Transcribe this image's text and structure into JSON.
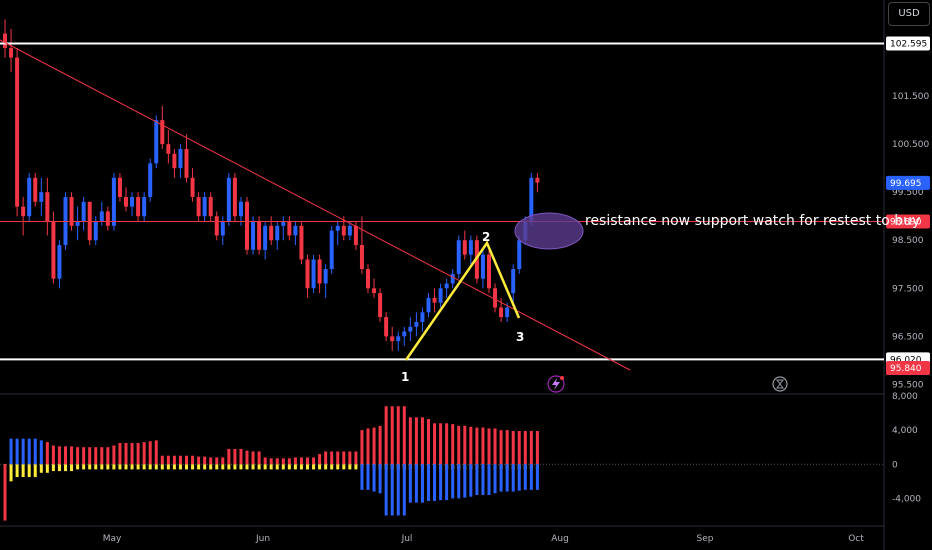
{
  "currency_button": "USD",
  "annotation_text": "resistance now support watch for restest to buy",
  "wave_labels": [
    "1",
    "2",
    "3"
  ],
  "colors": {
    "background": "#000000",
    "up_candle": "#2962ff",
    "down_candle": "#f23645",
    "level_line": "#ffffff",
    "resistance_line": "#f23645",
    "wave_line": "#ffeb3b",
    "ellipse_fill": "#5b3c8f",
    "tag_blue": "#2962ff",
    "tag_red": "#f23645"
  },
  "icons": [
    "lightning-icon",
    "hourglass-icon"
  ],
  "chart_data": [
    {
      "type": "candlestick",
      "title": "",
      "x_ticks": [
        "May",
        "Jun",
        "Jul",
        "Aug",
        "Sep",
        "Oct"
      ],
      "y_ticks": [
        "101.500",
        "100.500",
        "99.500",
        "98.500",
        "97.500",
        "96.500",
        "95.500"
      ],
      "ylim": [
        95.3,
        103.5
      ],
      "price_tags": [
        {
          "label": "102.595",
          "value": 102.595,
          "style": "white"
        },
        {
          "label": "99.695",
          "value": 99.695,
          "style": "blue"
        },
        {
          "label": "98.890",
          "value": 98.89,
          "style": "red"
        },
        {
          "label": "96.020",
          "value": 96.02,
          "style": "white"
        },
        {
          "label": "95.840",
          "value": 95.84,
          "style": "red"
        }
      ],
      "horizontal_levels": [
        102.595,
        96.02,
        98.89
      ],
      "candles": [
        [
          102.8,
          103.1,
          102.3,
          102.5
        ],
        [
          102.5,
          102.9,
          102.0,
          102.3
        ],
        [
          102.3,
          102.5,
          99.0,
          99.2
        ],
        [
          99.2,
          99.4,
          98.6,
          99.0
        ],
        [
          99.0,
          99.9,
          98.9,
          99.8
        ],
        [
          99.8,
          99.9,
          99.2,
          99.3
        ],
        [
          99.3,
          99.8,
          99.0,
          99.5
        ],
        [
          99.5,
          99.8,
          98.6,
          98.9
        ],
        [
          98.9,
          99.1,
          97.6,
          97.7
        ],
        [
          97.7,
          98.5,
          97.5,
          98.4
        ],
        [
          98.4,
          99.5,
          98.3,
          99.4
        ],
        [
          99.4,
          99.5,
          98.7,
          98.8
        ],
        [
          98.8,
          99.2,
          98.5,
          98.9
        ],
        [
          98.9,
          99.4,
          98.7,
          99.3
        ],
        [
          99.3,
          99.3,
          98.4,
          98.5
        ],
        [
          98.5,
          99.0,
          98.4,
          98.9
        ],
        [
          98.9,
          99.3,
          98.8,
          99.1
        ],
        [
          99.1,
          99.2,
          98.7,
          98.8
        ],
        [
          98.8,
          99.9,
          98.7,
          99.8
        ],
        [
          99.8,
          99.9,
          99.3,
          99.4
        ],
        [
          99.4,
          99.6,
          99.1,
          99.2
        ],
        [
          99.2,
          99.5,
          99.0,
          99.4
        ],
        [
          99.4,
          99.5,
          98.9,
          99.0
        ],
        [
          99.0,
          99.5,
          98.9,
          99.4
        ],
        [
          99.4,
          100.2,
          99.3,
          100.1
        ],
        [
          100.1,
          101.1,
          100.0,
          101.0
        ],
        [
          101.0,
          101.3,
          100.4,
          100.5
        ],
        [
          100.5,
          100.8,
          100.1,
          100.3
        ],
        [
          100.3,
          100.4,
          99.8,
          100.0
        ],
        [
          100.0,
          100.5,
          99.8,
          100.4
        ],
        [
          100.4,
          100.7,
          99.7,
          99.8
        ],
        [
          99.8,
          100.0,
          99.3,
          99.4
        ],
        [
          99.4,
          99.5,
          98.9,
          99.0
        ],
        [
          99.0,
          99.5,
          98.9,
          99.4
        ],
        [
          99.4,
          99.5,
          98.9,
          99.0
        ],
        [
          99.0,
          99.1,
          98.5,
          98.6
        ],
        [
          98.6,
          99.0,
          98.4,
          98.9
        ],
        [
          98.9,
          99.9,
          98.8,
          99.8
        ],
        [
          99.8,
          99.9,
          98.9,
          99.0
        ],
        [
          99.0,
          99.4,
          98.8,
          99.3
        ],
        [
          99.3,
          99.4,
          98.2,
          98.3
        ],
        [
          98.3,
          99.0,
          98.2,
          98.9
        ],
        [
          98.9,
          99.0,
          98.2,
          98.3
        ],
        [
          98.3,
          98.9,
          98.1,
          98.8
        ],
        [
          98.8,
          99.0,
          98.4,
          98.5
        ],
        [
          98.5,
          98.9,
          98.3,
          98.8
        ],
        [
          98.8,
          99.0,
          98.5,
          98.9
        ],
        [
          98.9,
          99.0,
          98.5,
          98.6
        ],
        [
          98.6,
          98.9,
          98.4,
          98.8
        ],
        [
          98.8,
          98.9,
          98.0,
          98.1
        ],
        [
          98.1,
          98.2,
          97.3,
          97.5
        ],
        [
          97.5,
          98.2,
          97.4,
          98.1
        ],
        [
          98.1,
          98.2,
          97.4,
          97.6
        ],
        [
          97.6,
          98.0,
          97.3,
          97.9
        ],
        [
          97.9,
          98.8,
          97.8,
          98.7
        ],
        [
          98.7,
          98.9,
          98.4,
          98.8
        ],
        [
          98.8,
          99.0,
          98.5,
          98.6
        ],
        [
          98.6,
          98.9,
          98.5,
          98.8
        ],
        [
          98.8,
          98.9,
          98.3,
          98.4
        ],
        [
          98.4,
          99.0,
          97.8,
          97.9
        ],
        [
          97.9,
          98.0,
          97.4,
          97.5
        ],
        [
          97.5,
          97.7,
          97.3,
          97.4
        ],
        [
          97.4,
          97.5,
          96.8,
          96.9
        ],
        [
          96.9,
          97.0,
          96.4,
          96.5
        ],
        [
          96.5,
          96.7,
          96.2,
          96.4
        ],
        [
          96.4,
          96.6,
          96.2,
          96.5
        ],
        [
          96.5,
          96.7,
          96.3,
          96.6
        ],
        [
          96.6,
          96.9,
          96.4,
          96.7
        ],
        [
          96.7,
          97.0,
          96.5,
          96.8
        ],
        [
          96.8,
          97.1,
          96.6,
          97.0
        ],
        [
          97.0,
          97.4,
          96.9,
          97.3
        ],
        [
          97.3,
          97.5,
          97.0,
          97.2
        ],
        [
          97.2,
          97.6,
          97.1,
          97.5
        ],
        [
          97.5,
          97.7,
          97.3,
          97.6
        ],
        [
          97.6,
          97.9,
          97.5,
          97.8
        ],
        [
          97.8,
          98.6,
          97.7,
          98.5
        ],
        [
          98.5,
          98.7,
          98.1,
          98.2
        ],
        [
          98.2,
          98.6,
          98.0,
          98.5
        ],
        [
          98.5,
          98.6,
          97.6,
          97.7
        ],
        [
          97.7,
          98.3,
          97.5,
          98.2
        ],
        [
          98.2,
          98.3,
          97.4,
          97.5
        ],
        [
          97.5,
          97.6,
          97.0,
          97.1
        ],
        [
          97.1,
          97.3,
          96.8,
          96.9
        ],
        [
          96.9,
          97.2,
          96.8,
          97.1
        ],
        [
          97.4,
          98.0,
          97.2,
          97.9
        ],
        [
          97.9,
          98.6,
          97.8,
          98.5
        ],
        [
          98.5,
          99.0,
          98.4,
          98.9
        ],
        [
          98.9,
          99.9,
          98.8,
          99.8
        ],
        [
          99.8,
          99.9,
          99.5,
          99.7
        ]
      ],
      "annotations": [
        "1",
        "2",
        "3"
      ]
    },
    {
      "type": "bar",
      "title": "",
      "y_ticks": [
        "8,000",
        "4,000",
        "0",
        "-4,000"
      ],
      "ylim": [
        -7000,
        8000
      ],
      "series": [
        {
          "values": [
            -3000,
            -2000,
            -1500,
            -1500,
            -1500,
            -1500,
            -1000,
            -1000,
            -800,
            -800,
            -800,
            -800,
            -600,
            -600,
            -600,
            -600,
            -600,
            -600,
            -600,
            -600,
            -600,
            -600,
            -600,
            -600,
            -600,
            -600,
            -600,
            -600,
            -600,
            -600,
            -600,
            -600,
            -600,
            -600,
            -600,
            -600,
            -600,
            -600,
            -600,
            -600,
            -600,
            -600,
            -600,
            -600,
            -600,
            -600,
            -600,
            -600,
            -600,
            -600,
            -600,
            -600,
            -600,
            -600,
            -600,
            -600,
            -600,
            -600,
            -600,
            -600,
            -600,
            -600,
            -600,
            -600,
            -600,
            -600,
            -600,
            -600,
            -600,
            -600,
            -600,
            -600,
            -600,
            -600,
            -600,
            -600,
            -600,
            -600,
            -600,
            -600,
            -600,
            -600,
            -600,
            -600,
            -600,
            -600,
            -600,
            -600,
            -600
          ]
        },
        {
          "values": [
            -6600,
            3000,
            3000,
            3000,
            3000,
            3000,
            2800,
            2600,
            2200,
            2100,
            2100,
            2100,
            2000,
            2000,
            2000,
            2000,
            2000,
            2000,
            2200,
            2500,
            2500,
            2500,
            2500,
            2600,
            2700,
            2800,
            1000,
            1000,
            1000,
            1000,
            1000,
            1000,
            900,
            900,
            800,
            800,
            800,
            1800,
            1800,
            1800,
            1600,
            1500,
            1500,
            800,
            700,
            700,
            700,
            700,
            800,
            800,
            800,
            800,
            1200,
            1500,
            1500,
            1500,
            1500,
            1500,
            1500,
            4000,
            4200,
            4300,
            4500,
            6800,
            6800,
            6800,
            6800,
            5500,
            5500,
            5500,
            5300,
            4800,
            4800,
            4800,
            4700,
            4500,
            4500,
            4400,
            4300,
            4300,
            4200,
            4200,
            4000,
            4000,
            3900,
            3900,
            3900,
            3900,
            3900
          ]
        },
        {
          "values": [
            0,
            0,
            0,
            0,
            0,
            0,
            0,
            0,
            0,
            0,
            0,
            0,
            0,
            0,
            0,
            0,
            0,
            0,
            0,
            0,
            0,
            0,
            0,
            0,
            0,
            0,
            0,
            0,
            0,
            0,
            0,
            0,
            0,
            0,
            0,
            0,
            0,
            0,
            0,
            0,
            0,
            0,
            0,
            0,
            0,
            0,
            0,
            0,
            0,
            0,
            0,
            0,
            0,
            0,
            0,
            0,
            0,
            0,
            0,
            -3000,
            -3000,
            -3200,
            -3400,
            -6000,
            -6000,
            -6000,
            -6000,
            -4500,
            -4500,
            -4500,
            -4300,
            -4300,
            -4200,
            -4200,
            -4000,
            -4000,
            -3900,
            -3800,
            -3600,
            -3600,
            -3600,
            -3400,
            -3200,
            -3200,
            -3200,
            -3100,
            -3000,
            -3000,
            -3000
          ]
        }
      ]
    }
  ]
}
